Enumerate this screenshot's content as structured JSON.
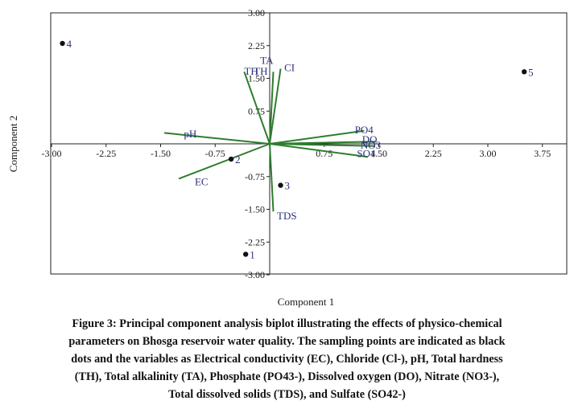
{
  "chart_data": {
    "type": "scatter",
    "subtype": "pca-biplot",
    "xlabel": "Component 1",
    "ylabel": "Component 2",
    "xlim": [
      -3.0,
      4.1
    ],
    "ylim": [
      -3.0,
      3.0
    ],
    "x_ticks": [
      "-3.00",
      "-2.25",
      "-1.50",
      "-0.75",
      "0.75",
      "1.50",
      "2.25",
      "3.00",
      "3.75"
    ],
    "x_tick_values": [
      -3.0,
      -2.25,
      -1.5,
      -0.75,
      0.75,
      1.5,
      2.25,
      3.0,
      3.75
    ],
    "y_ticks": [
      "3.00",
      "2.25",
      "1.50",
      "0.75",
      "-0.75",
      "-1.50",
      "-2.25",
      "-3.00"
    ],
    "y_tick_values": [
      3.0,
      2.25,
      1.5,
      0.75,
      -0.75,
      -1.5,
      -2.25,
      -3.0
    ],
    "grid": false,
    "vector_color": "#2e7d2e",
    "point_color": "#111111",
    "label_color": "#2a2f7a",
    "points": [
      {
        "label": "1",
        "x": -0.33,
        "y": -2.53
      },
      {
        "label": "2",
        "x": -0.53,
        "y": -0.35
      },
      {
        "label": "3",
        "x": 0.15,
        "y": -0.95
      },
      {
        "label": "4",
        "x": -2.85,
        "y": 2.3
      },
      {
        "label": "5",
        "x": 3.5,
        "y": 1.65
      }
    ],
    "vectors": [
      {
        "name": "TA",
        "x": 0.05,
        "y": 1.65
      },
      {
        "name": "TH",
        "x": -0.35,
        "y": 1.65
      },
      {
        "name": "Cl",
        "x": 0.15,
        "y": 1.72
      },
      {
        "name": "pH",
        "x": -1.45,
        "y": 0.25
      },
      {
        "name": "EC",
        "x": -1.25,
        "y": -0.8
      },
      {
        "name": "PO4",
        "x": 1.3,
        "y": 0.3
      },
      {
        "name": "DO",
        "x": 1.45,
        "y": 0.05
      },
      {
        "name": "NO3",
        "x": 1.45,
        "y": -0.05
      },
      {
        "name": "SO4",
        "x": 1.35,
        "y": -0.3
      },
      {
        "name": "TDS",
        "x": 0.05,
        "y": -1.55
      }
    ],
    "vector_labels": [
      {
        "text": "TA",
        "x": -0.13,
        "y": 1.83
      },
      {
        "text": "TH",
        "x": -0.35,
        "y": 1.58
      },
      {
        "text": "TH",
        "x": -0.22,
        "y": 1.58
      },
      {
        "text": "CI",
        "x": 0.2,
        "y": 1.67
      },
      {
        "text": "pH",
        "x": -1.18,
        "y": 0.15
      },
      {
        "text": "EC",
        "x": -1.03,
        "y": -0.95
      },
      {
        "text": "PO4",
        "x": 1.17,
        "y": 0.24
      },
      {
        "text": "DO",
        "x": 1.27,
        "y": 0.02
      },
      {
        "text": "NO3",
        "x": 1.25,
        "y": -0.11
      },
      {
        "text": "SO4",
        "x": 1.2,
        "y": -0.3
      },
      {
        "text": "TDS",
        "x": 0.1,
        "y": -1.73
      }
    ]
  },
  "caption": {
    "line1": "Figure 3: Principal component analysis biplot illustrating the effects of physico-chemical",
    "line2": "parameters on Bhosga reservoir water quality. The sampling points are indicated as black",
    "line3": "dots and the variables as Electrical conductivity (EC), Chloride (Cl-), pH, Total hardness",
    "line4": "(TH), Total alkalinity (TA), Phosphate (PO43-), Dissolved oxygen (DO), Nitrate (NO3-),",
    "line5": "Total dissolved solids (TDS), and Sulfate (SO42-)"
  }
}
